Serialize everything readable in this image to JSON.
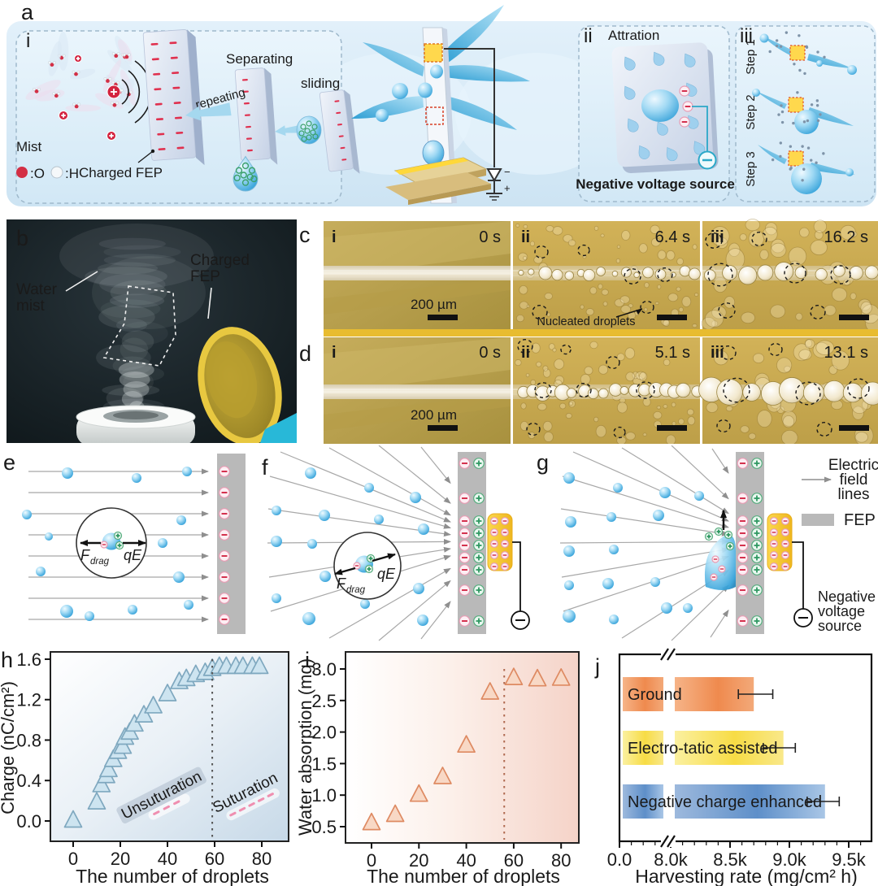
{
  "figure": {
    "panel_labels": {
      "a": "a",
      "b": "b",
      "c": "c",
      "d": "d",
      "e": "e",
      "f": "f",
      "g": "g",
      "h": "h",
      "i": "i",
      "j": "j"
    },
    "a": {
      "i": {
        "label": "i",
        "separating": "Separating",
        "repeating": "repeating",
        "sliding": "sliding",
        "mist": "Mist",
        "o_legend": ":O",
        "h_legend": ":H",
        "charged_fep": "Charged FEP"
      },
      "ii": {
        "label": "ii",
        "title": "Attration",
        "source_label": "Negative voltage source"
      },
      "iii": {
        "label": "iii",
        "step1": "Step 1",
        "step2": "Step 2",
        "step3": "Step 3"
      }
    },
    "b": {
      "water_mist_line1": "Water",
      "water_mist_line2": "mist",
      "fep_line1": "Charged",
      "fep_line2": "FEP"
    },
    "c": {
      "frames": [
        {
          "label": "i",
          "time": "0 s"
        },
        {
          "label": "ii",
          "time": "6.4 s"
        },
        {
          "label": "iii",
          "time": "16.2 s"
        }
      ],
      "scale_bar": "200 µm",
      "annotation": "Nucleated droplets"
    },
    "d": {
      "frames": [
        {
          "label": "i",
          "time": "0 s"
        },
        {
          "label": "ii",
          "time": "5.1 s"
        },
        {
          "label": "iii",
          "time": "13.1 s"
        }
      ],
      "scale_bar": "200 µm"
    },
    "efg": {
      "f_symbol": "F",
      "f_sub": "drag",
      "qe": "qE",
      "legend_field_1": "Electric",
      "legend_field_2": "field",
      "legend_field_3": "lines",
      "legend_fep": "FEP",
      "legend_nvs_1": "Negative",
      "legend_nvs_2": "voltage",
      "legend_nvs_3": "source"
    }
  },
  "chart_data": [
    {
      "type": "scatter",
      "panel": "h",
      "marker": "triangle",
      "x": [
        0,
        10,
        12,
        14,
        15,
        17,
        19,
        21,
        22,
        24,
        26,
        30,
        34,
        40,
        45,
        48,
        52,
        56,
        59,
        62,
        65,
        69,
        72,
        76,
        79
      ],
      "y": [
        0.0,
        0.18,
        0.35,
        0.44,
        0.5,
        0.6,
        0.68,
        0.73,
        0.82,
        0.87,
        0.95,
        1.04,
        1.13,
        1.25,
        1.37,
        1.4,
        1.44,
        1.46,
        1.5,
        1.52,
        1.52,
        1.52,
        1.52,
        1.52,
        1.52
      ],
      "xlabel": "The number of droplets",
      "ylabel": "Charge (nC/cm²)",
      "xticks": [
        0,
        20,
        40,
        60,
        80
      ],
      "yticks": [
        "0.0",
        "0.4",
        "0.8",
        "1.2",
        "1.6"
      ],
      "xlim": [
        -10,
        90
      ],
      "ylim": [
        -0.2,
        1.67
      ],
      "dashed_line_x": 59,
      "annotations": [
        "Unsuturation",
        "Suturation"
      ]
    },
    {
      "type": "scatter",
      "panel": "i",
      "marker": "triangle",
      "x": [
        0,
        10,
        20,
        30,
        40,
        50,
        60,
        70,
        80
      ],
      "y": [
        0.55,
        0.68,
        1.0,
        1.28,
        1.78,
        2.62,
        2.85,
        2.83,
        2.84
      ],
      "xlabel": "The number of droplets",
      "ylabel": "Water absorption (mg)",
      "xticks": [
        0,
        20,
        40,
        60,
        80
      ],
      "yticks": [
        "0.5",
        "1.0",
        "1.5",
        "2.0",
        "2.5",
        "3.0"
      ],
      "xlim": [
        -11,
        87
      ],
      "ylim": [
        0.24,
        3.26
      ],
      "dashed_line_x": 56
    },
    {
      "type": "bar",
      "panel": "j",
      "orientation": "horizontal",
      "categories": [
        "Ground",
        "Electro-tatic assisted",
        "Negative charge enhanced"
      ],
      "values": [
        8700,
        8950,
        9300
      ],
      "error_ranges": [
        [
          8570,
          8860
        ],
        [
          8780,
          9050
        ],
        [
          9150,
          9420
        ]
      ],
      "bar_colors": [
        "#ef8a4e",
        "#f7dc45",
        "#5e8fc9"
      ],
      "xticks": [
        "0.0",
        "8.0k",
        "8.5k",
        "9.0k",
        "9.5k"
      ],
      "xtick_values": [
        0,
        8000,
        8500,
        9000,
        9500
      ],
      "xlabel": "Harvesting rate (mg/cm² h)",
      "axis_break": true
    }
  ]
}
